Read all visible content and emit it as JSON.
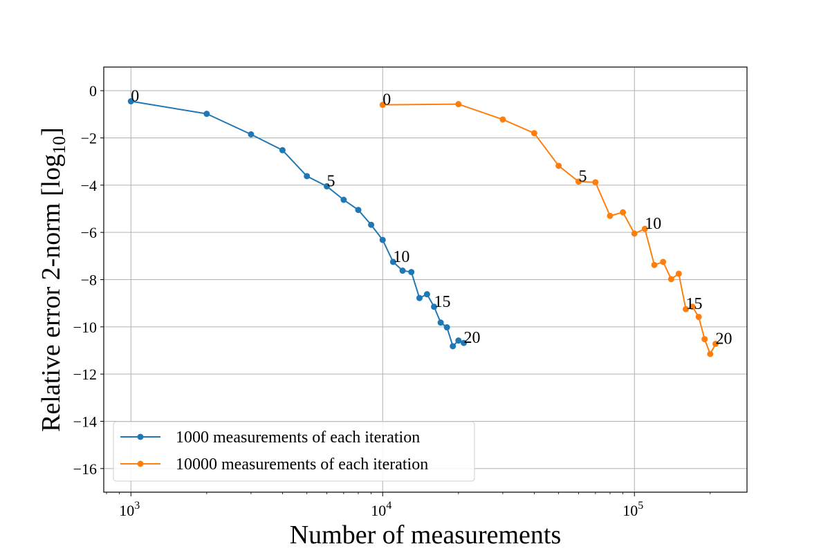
{
  "chart_data": {
    "type": "line",
    "title": "",
    "xlabel": "Number of measurements",
    "ylabel": "Relative error 2-norm [log",
    "ylabel_subscript": "10",
    "ylabel_suffix": "]",
    "x_scale": "log",
    "xlim": [
      780,
      280000
    ],
    "ylim": [
      -17,
      1
    ],
    "grid": true,
    "x_ticks": [
      {
        "value": 1000,
        "base": "10",
        "exp": "3"
      },
      {
        "value": 10000,
        "base": "10",
        "exp": "4"
      },
      {
        "value": 100000,
        "base": "10",
        "exp": "5"
      }
    ],
    "y_ticks": [
      {
        "value": 0,
        "label": "0"
      },
      {
        "value": -2,
        "label": "−2"
      },
      {
        "value": -4,
        "label": "−4"
      },
      {
        "value": -6,
        "label": "−6"
      },
      {
        "value": -8,
        "label": "−8"
      },
      {
        "value": -10,
        "label": "−10"
      },
      {
        "value": -12,
        "label": "−12"
      },
      {
        "value": -14,
        "label": "−14"
      },
      {
        "value": -16,
        "label": "−16"
      }
    ],
    "legend_position": "lower-left",
    "series": [
      {
        "name": "1000 measurements of each iteration",
        "color": "#1f77b4",
        "x": [
          1000,
          2000,
          3000,
          4000,
          5000,
          6000,
          7000,
          8000,
          9000,
          10000,
          11000,
          12000,
          13000,
          14000,
          15000,
          16000,
          17000,
          18000,
          19000,
          20000,
          21000
        ],
        "y": [
          -0.45,
          -0.98,
          -1.85,
          -2.52,
          -3.62,
          -4.05,
          -4.62,
          -5.05,
          -5.68,
          -6.32,
          -7.25,
          -7.62,
          -7.68,
          -8.78,
          -8.62,
          -9.15,
          -9.82,
          -10.02,
          -10.82,
          -10.58,
          -10.68
        ],
        "annotations": [
          {
            "index": 0,
            "text": "0"
          },
          {
            "index": 5,
            "text": "5"
          },
          {
            "index": 10,
            "text": "10"
          },
          {
            "index": 15,
            "text": "15"
          },
          {
            "index": 20,
            "text": "20"
          }
        ]
      },
      {
        "name": "10000 measurements of each iteration",
        "color": "#ff7f0e",
        "x": [
          10000,
          20000,
          30000,
          40000,
          50000,
          60000,
          70000,
          80000,
          90000,
          100000,
          110000,
          120000,
          130000,
          140000,
          150000,
          160000,
          170000,
          180000,
          190000,
          200000,
          210000
        ],
        "y": [
          -0.6,
          -0.57,
          -1.22,
          -1.8,
          -3.18,
          -3.85,
          -3.88,
          -5.3,
          -5.15,
          -6.05,
          -5.85,
          -7.38,
          -7.25,
          -7.98,
          -7.75,
          -9.25,
          -9.15,
          -9.58,
          -10.52,
          -11.15,
          -10.72
        ],
        "annotations": [
          {
            "index": 0,
            "text": "0"
          },
          {
            "index": 5,
            "text": "5"
          },
          {
            "index": 10,
            "text": "10"
          },
          {
            "index": 15,
            "text": "15"
          },
          {
            "index": 20,
            "text": "20"
          }
        ]
      }
    ]
  }
}
